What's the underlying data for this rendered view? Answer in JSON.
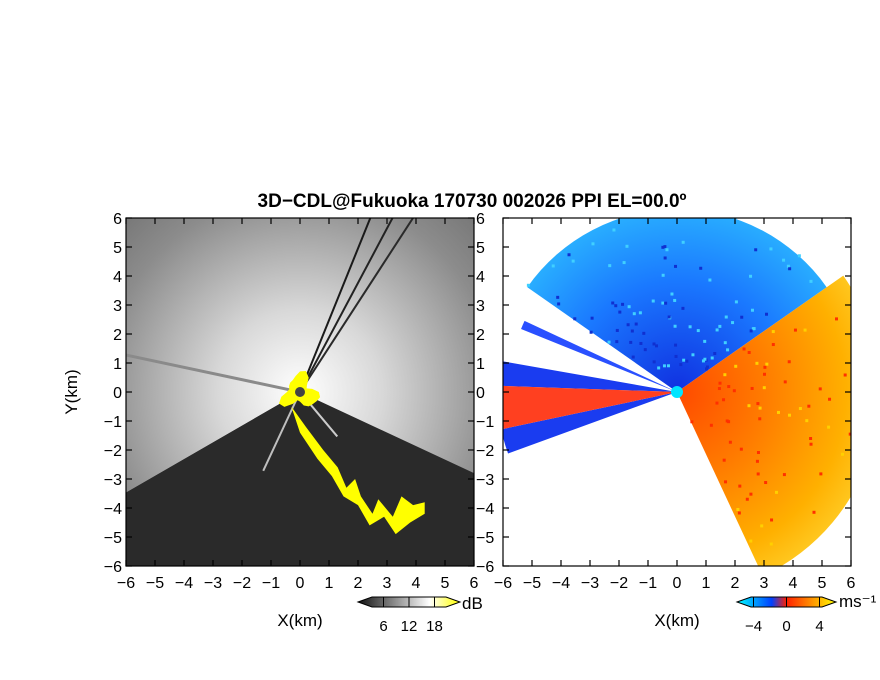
{
  "chart_data": {
    "title": "3D−CDL@Fukuoka 170730 002026 PPI EL=00.0º",
    "panels": [
      {
        "type": "heatmap",
        "quantity": "backscatter",
        "xlabel": "X(km)",
        "ylabel": "Y(km)",
        "xlim": [
          -6,
          6
        ],
        "ylim": [
          -6,
          6
        ],
        "xticks": [
          "−6",
          "−5",
          "−4",
          "−3",
          "−2",
          "−1",
          "0",
          "1",
          "2",
          "3",
          "4",
          "5",
          "6"
        ],
        "yticks": [
          "−6",
          "−5",
          "−4",
          "−3",
          "−2",
          "−1",
          "0",
          "1",
          "2",
          "3",
          "4",
          "5",
          "6"
        ],
        "colorbar": {
          "unit": "dB",
          "ticks": [
            "6",
            "12",
            "18"
          ],
          "tick_values": [
            6,
            12,
            18
          ],
          "range": [
            0,
            24
          ],
          "colors": [
            "#111111",
            "#ffffff",
            "#ffff00"
          ]
        },
        "blocked_sectors_deg": [
          [
            115,
            155
          ],
          [
            165,
            240
          ]
        ],
        "saturated_color": "#ffff00"
      },
      {
        "type": "heatmap",
        "quantity": "radial velocity",
        "xlabel": "X(km)",
        "xlim": [
          -6,
          6
        ],
        "ylim": [
          -6,
          6
        ],
        "xticks": [
          "−6",
          "−5",
          "−4",
          "−3",
          "−2",
          "−1",
          "0",
          "1",
          "2",
          "3",
          "4",
          "5",
          "6"
        ],
        "yticks": [
          "−6",
          "−5",
          "−4",
          "−3",
          "−2",
          "−1",
          "0",
          "1",
          "2",
          "3",
          "4",
          "5",
          "6"
        ],
        "colorbar": {
          "unit": "ms⁻¹",
          "ticks": [
            "−4",
            "0",
            "4"
          ],
          "tick_values": [
            -4,
            0,
            4
          ],
          "range": [
            -6,
            6
          ],
          "colors": [
            "#00ffff",
            "#0040ff",
            "#ff2000",
            "#ffff00"
          ]
        },
        "approaching_color": "#1a7aff",
        "receding_color": "#ff6a00",
        "radar_marker_color": "#00e5ff"
      }
    ]
  }
}
